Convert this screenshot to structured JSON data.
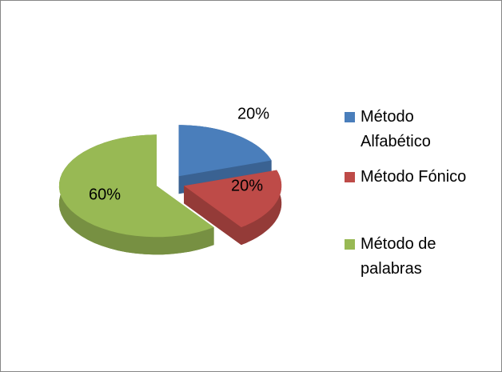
{
  "chart_data": {
    "type": "pie",
    "categories": [
      "Método Alfabético",
      "Método Fónico",
      "Método de palabras"
    ],
    "values": [
      20,
      20,
      60
    ],
    "value_labels": [
      "20%",
      "20%",
      "60%"
    ],
    "colors": [
      "#4a7ebb",
      "#be4b48",
      "#98b954"
    ]
  }
}
